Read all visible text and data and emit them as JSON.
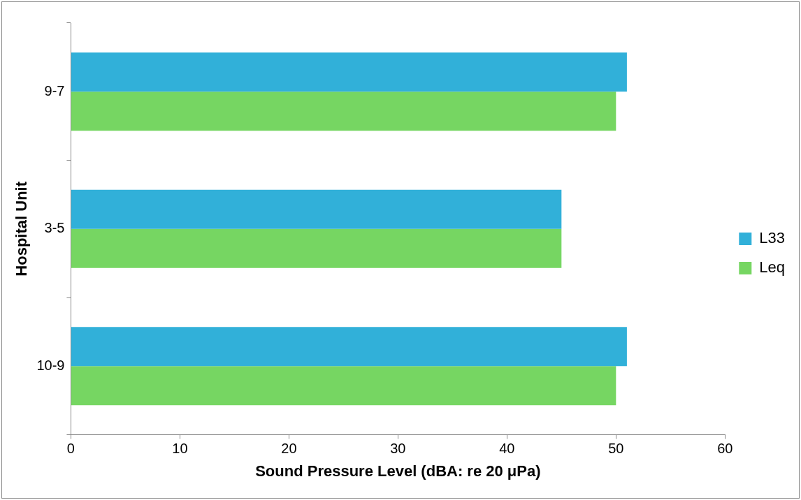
{
  "chart_data": {
    "type": "bar",
    "orientation": "horizontal",
    "xlabel": "Sound Pressure Level (dBA: re 20 μPa)",
    "ylabel": "Hospital Unit",
    "categories": [
      "9-7",
      "3-5",
      "10-9"
    ],
    "series": [
      {
        "name": "L33",
        "color": "#31b0d9",
        "values": [
          51,
          45,
          51
        ]
      },
      {
        "name": "Leq",
        "color": "#76d662",
        "values": [
          50,
          45,
          50
        ]
      }
    ],
    "xlim": [
      0,
      60
    ],
    "xticks": [
      0,
      10,
      20,
      30,
      40,
      50,
      60
    ],
    "grid": false,
    "legend": "right"
  }
}
